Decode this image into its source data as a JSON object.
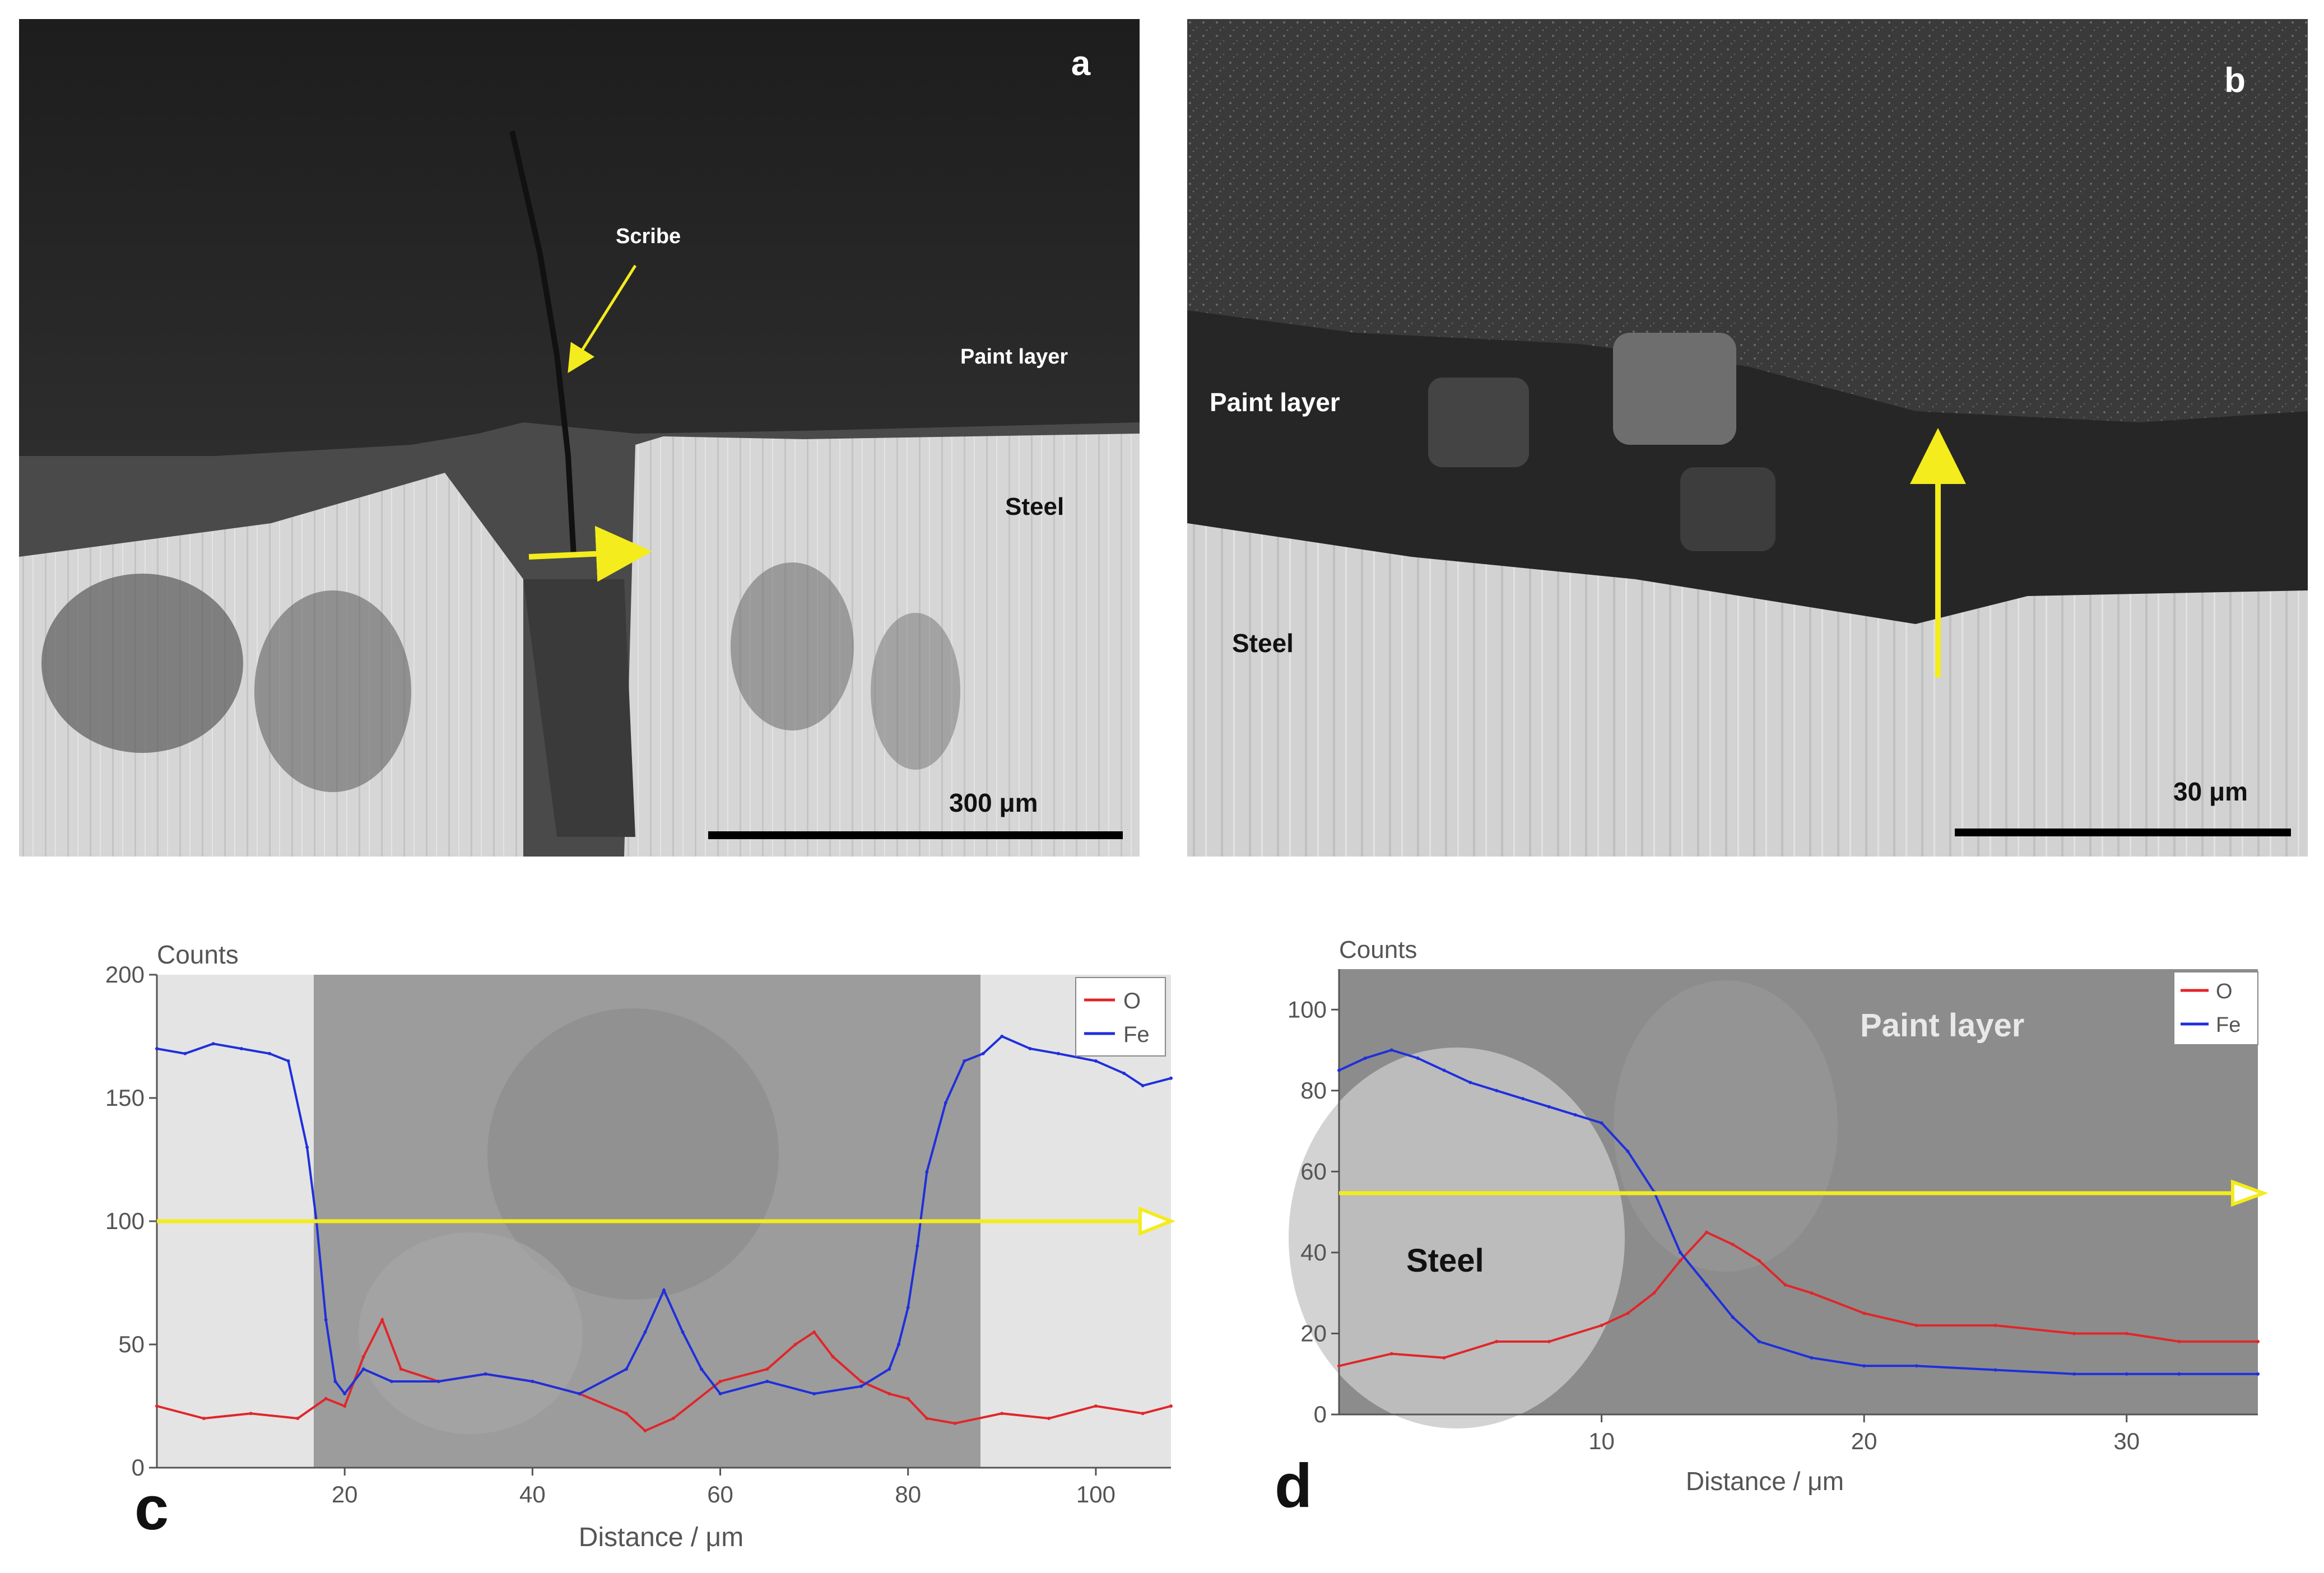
{
  "panels": {
    "a": {
      "letter": "a",
      "scribe_label": "Scribe",
      "paint_label": "Paint layer",
      "steel_label": "Steel",
      "scale_label": "300 μm"
    },
    "b": {
      "letter": "b",
      "paint_label": "Paint layer",
      "steel_label": "Steel",
      "scale_label": "30 μm"
    },
    "c": {
      "letter": "c"
    },
    "d": {
      "letter": "d",
      "paint_label": "Paint layer",
      "steel_label": "Steel"
    }
  },
  "colors": {
    "O": "#e0262a",
    "Fe": "#1f2fdc",
    "arrow": "#f4ec1c"
  },
  "chart_data": [
    {
      "type": "line",
      "panel": "c",
      "ylabel": "Counts",
      "xlabel": "Distance / μm",
      "xlim": [
        0,
        108
      ],
      "ylim": [
        0,
        200
      ],
      "xticks": [
        20,
        40,
        60,
        80,
        100
      ],
      "yticks": [
        0,
        50,
        100,
        150,
        200
      ],
      "legend": [
        "O",
        "Fe"
      ],
      "legend_position": "top-right",
      "series": [
        {
          "name": "O",
          "x": [
            0,
            5,
            10,
            15,
            18,
            20,
            22,
            24,
            26,
            30,
            35,
            40,
            45,
            50,
            52,
            55,
            60,
            65,
            68,
            70,
            72,
            75,
            78,
            80,
            82,
            85,
            90,
            95,
            100,
            105,
            108
          ],
          "values": [
            25,
            20,
            22,
            20,
            28,
            25,
            45,
            60,
            40,
            35,
            38,
            35,
            30,
            22,
            15,
            20,
            35,
            40,
            50,
            55,
            45,
            35,
            30,
            28,
            20,
            18,
            22,
            20,
            25,
            22,
            25
          ]
        },
        {
          "name": "Fe",
          "x": [
            0,
            3,
            6,
            9,
            12,
            14,
            16,
            17,
            18,
            19,
            20,
            22,
            25,
            30,
            35,
            40,
            45,
            50,
            52,
            54,
            56,
            58,
            60,
            65,
            70,
            75,
            78,
            79,
            80,
            81,
            82,
            84,
            86,
            88,
            90,
            93,
            96,
            100,
            103,
            105,
            108
          ],
          "values": [
            170,
            168,
            172,
            170,
            168,
            165,
            130,
            100,
            60,
            35,
            30,
            40,
            35,
            35,
            38,
            35,
            30,
            40,
            55,
            72,
            55,
            40,
            30,
            35,
            30,
            33,
            40,
            50,
            65,
            90,
            120,
            148,
            165,
            168,
            175,
            170,
            168,
            165,
            160,
            155,
            158
          ]
        }
      ]
    },
    {
      "type": "line",
      "panel": "d",
      "ylabel": "Counts",
      "xlabel": "Distance / μm",
      "xlim": [
        0,
        35
      ],
      "ylim": [
        0,
        110
      ],
      "xticks": [
        10,
        20,
        30
      ],
      "yticks": [
        0,
        20,
        40,
        60,
        80,
        100
      ],
      "legend": [
        "O",
        "Fe"
      ],
      "legend_position": "top-right",
      "series": [
        {
          "name": "O",
          "x": [
            0,
            2,
            4,
            6,
            8,
            10,
            11,
            12,
            13,
            14,
            15,
            16,
            17,
            18,
            20,
            22,
            25,
            28,
            30,
            32,
            35
          ],
          "values": [
            12,
            15,
            14,
            18,
            18,
            22,
            25,
            30,
            38,
            45,
            42,
            38,
            32,
            30,
            25,
            22,
            22,
            20,
            20,
            18,
            18
          ]
        },
        {
          "name": "Fe",
          "x": [
            0,
            1,
            2,
            3,
            4,
            5,
            6,
            7,
            8,
            9,
            10,
            11,
            12,
            13,
            14,
            15,
            16,
            18,
            20,
            22,
            25,
            28,
            30,
            32,
            35
          ],
          "values": [
            85,
            88,
            90,
            88,
            85,
            82,
            80,
            78,
            76,
            74,
            72,
            65,
            55,
            40,
            32,
            24,
            18,
            14,
            12,
            12,
            11,
            10,
            10,
            10,
            10
          ]
        }
      ]
    }
  ]
}
